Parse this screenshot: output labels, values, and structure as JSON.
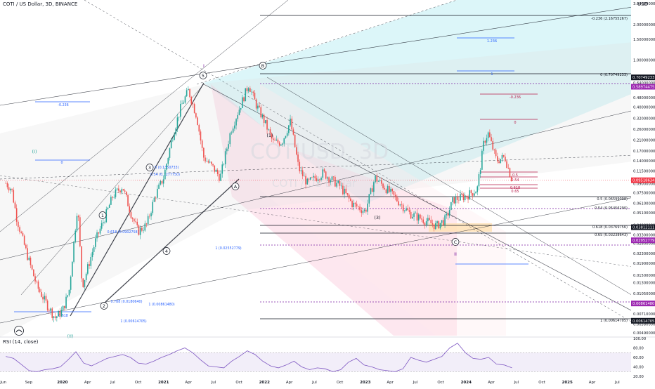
{
  "header": {
    "title": "COTI / US Dollar, 3D, BINANCE"
  },
  "watermark": {
    "symbol": "COTIUSD, 3D",
    "name": "COTI / US Dollar"
  },
  "axis": {
    "currency": "USD"
  },
  "colors": {
    "candle_up": "#26a69a",
    "candle_down": "#ef5350",
    "rsi_line": "#7e57c2",
    "fib_blue": "#2962ff",
    "fib_red": "#b71c4a",
    "fib_purple": "#7b1fa2",
    "price_label_bg": "#f23645",
    "ref_label_bg": "#9c27b0",
    "channel_teal": "#b2ebf2",
    "channel_red": "#f8bbd0",
    "channel_gray": "#e0e0e0"
  },
  "chart_data": {
    "type": "candlestick",
    "title": "COTI / US Dollar, 3D, BINANCE",
    "y_scale": "log",
    "ylim": [
      0.0046,
      3.2
    ],
    "x_tick_labels": [
      "Jun",
      "Sep",
      "2020",
      "Apr",
      "Jul",
      "Oct",
      "2021",
      "Apr",
      "Jul",
      "Oct",
      "2022",
      "Apr",
      "Jul",
      "Oct",
      "2023",
      "Apr",
      "Jul",
      "Oct",
      "2024",
      "Apr",
      "Jul",
      "Oct",
      "2025",
      "Apr",
      "Jul"
    ],
    "y_tick_labels": [
      "3.00000000",
      "2.00000000",
      "1.50000000",
      "1.00000000",
      "0.64000000",
      "0.48000000",
      "0.40000000",
      "0.32000000",
      "0.26000000",
      "0.21000000",
      "0.17000000",
      "0.14000000",
      "0.11500000",
      "0.09000000",
      "0.07500000",
      "0.06100000",
      "0.05100000",
      "0.04000000",
      "0.03300000",
      "0.02800000",
      "0.02300000",
      "0.01900000",
      "0.01500000",
      "0.01300000",
      "0.01050000",
      "0.00860000",
      "0.00710000",
      "0.00580000",
      "0.00490000"
    ],
    "price_series": {
      "name": "COTI / US Dollar",
      "points": [
        [
          "2019-06-10",
          0.09
        ],
        [
          "2019-07-01",
          0.08
        ],
        [
          "2019-07-20",
          0.045
        ],
        [
          "2019-08-10",
          0.03
        ],
        [
          "2019-09-01",
          0.02
        ],
        [
          "2019-10-01",
          0.012
        ],
        [
          "2019-11-05",
          0.0085
        ],
        [
          "2019-12-05",
          0.0065
        ],
        [
          "2020-01-01",
          0.0075
        ],
        [
          "2020-01-25",
          0.011
        ],
        [
          "2020-02-25",
          0.06
        ],
        [
          "2020-03-12",
          0.012
        ],
        [
          "2020-03-25",
          0.015
        ],
        [
          "2020-05-01",
          0.03
        ],
        [
          "2020-06-01",
          0.045
        ],
        [
          "2020-07-01",
          0.07
        ],
        [
          "2020-08-05",
          0.085
        ],
        [
          "2020-09-05",
          0.05
        ],
        [
          "2020-10-01",
          0.035
        ],
        [
          "2020-11-01",
          0.04
        ],
        [
          "2020-12-01",
          0.07
        ],
        [
          "2021-01-01",
          0.1
        ],
        [
          "2021-02-01",
          0.22
        ],
        [
          "2021-03-05",
          0.4
        ],
        [
          "2021-04-01",
          0.55
        ],
        [
          "2021-05-01",
          0.33
        ],
        [
          "2021-05-25",
          0.15
        ],
        [
          "2021-07-01",
          0.12
        ],
        [
          "2021-07-25",
          0.1
        ],
        [
          "2021-09-01",
          0.25
        ],
        [
          "2021-10-01",
          0.38
        ],
        [
          "2021-11-05",
          0.62
        ],
        [
          "2021-12-01",
          0.42
        ],
        [
          "2022-01-01",
          0.3
        ],
        [
          "2022-02-01",
          0.2
        ],
        [
          "2022-03-05",
          0.2
        ],
        [
          "2022-04-05",
          0.3
        ],
        [
          "2022-05-05",
          0.12
        ],
        [
          "2022-06-05",
          0.09
        ],
        [
          "2022-08-01",
          0.11
        ],
        [
          "2022-10-01",
          0.085
        ],
        [
          "2022-11-15",
          0.06
        ],
        [
          "2023-01-01",
          0.052
        ],
        [
          "2023-02-05",
          0.1
        ],
        [
          "2023-04-01",
          0.075
        ],
        [
          "2023-06-10",
          0.05
        ],
        [
          "2023-08-01",
          0.044
        ],
        [
          "2023-09-15",
          0.039
        ],
        [
          "2023-10-20",
          0.045
        ],
        [
          "2023-11-15",
          0.065
        ],
        [
          "2024-01-01",
          0.07
        ],
        [
          "2024-02-10",
          0.08
        ],
        [
          "2024-03-05",
          0.2
        ],
        [
          "2024-03-20",
          0.24
        ],
        [
          "2024-04-20",
          0.14
        ],
        [
          "2024-05-20",
          0.15
        ],
        [
          "2024-06-15",
          0.095
        ]
      ]
    },
    "last_price_label": "0.09518634",
    "axis_markers": [
      "0.70749233",
      "0.58974475",
      "0.03812111",
      "0.02952779",
      "0.00861480",
      "0.00614705"
    ],
    "fib_top_right": [
      "-0.236 (2.16755267)",
      "0 (0.70749233)",
      "0.5 (0.06599098)",
      "0.54 (0.05456290)",
      "0.618 (0.03769756)",
      "0.65 (0.03238643)",
      "1 (0.00614705)"
    ],
    "fib_mid_labels": [
      "1.236",
      "1",
      "-0.236",
      "0",
      "0.5",
      "0.54",
      "0.618",
      "0.65"
    ],
    "fib_left_labels": [
      "-0.236",
      "0",
      "0.5 (0.1350733)",
      "0.54 (0.1277750)",
      "0.618 (0.0902758)",
      "0.788 (0.0180640)",
      "1 (0.00861480)",
      "1 (0.00614705)",
      "0.618",
      "1 (0.02552779)"
    ],
    "wave_labels": [
      "I",
      "(I)",
      "(II)",
      "1",
      "2",
      "3",
      "4",
      "5",
      "A",
      "B",
      "C",
      "(1)",
      "(3)",
      "II"
    ],
    "rsi": {
      "name": "RSI (14, close)",
      "y_tick_labels": [
        "100.00",
        "80.00",
        "60.00",
        "40.00",
        "20.00"
      ],
      "ylim": [
        20,
        100
      ],
      "bands": [
        70,
        30
      ],
      "values": [
        62,
        58,
        45,
        32,
        30,
        34,
        36,
        40,
        55,
        72,
        48,
        42,
        50,
        58,
        62,
        66,
        60,
        48,
        46,
        52,
        60,
        66,
        74,
        80,
        70,
        55,
        42,
        40,
        38,
        52,
        62,
        74,
        66,
        52,
        42,
        38,
        44,
        52,
        40,
        34,
        38,
        36,
        30,
        34,
        50,
        58,
        44,
        40,
        34,
        32,
        30,
        36,
        60,
        54,
        50,
        56,
        62,
        80,
        90,
        70,
        58,
        56,
        60,
        46,
        44,
        38
      ]
    }
  }
}
